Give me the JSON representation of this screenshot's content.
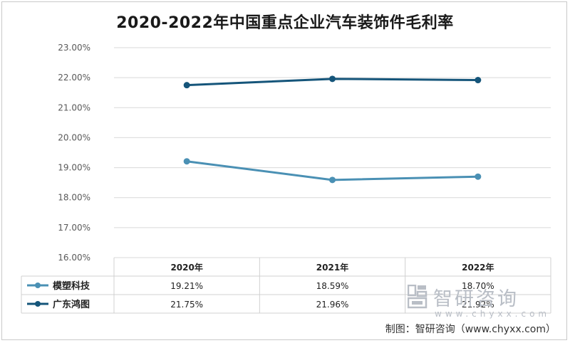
{
  "chart_data": {
    "type": "line",
    "title": "2020-2022年中国重点企业汽车装饰件毛利率",
    "categories": [
      "2020年",
      "2021年",
      "2022年"
    ],
    "series": [
      {
        "name": "模塑科技",
        "values": [
          19.21,
          18.59,
          18.7
        ],
        "value_labels": [
          "19.21%",
          "18.59%",
          "18.70%"
        ],
        "color": "#4a90b4"
      },
      {
        "name": "广东鸿图",
        "values": [
          21.75,
          21.96,
          21.92
        ],
        "value_labels": [
          "21.75%",
          "21.96%",
          "21.92%"
        ],
        "color": "#15557a"
      }
    ],
    "y_ticks": [
      "16.00%",
      "17.00%",
      "18.00%",
      "19.00%",
      "20.00%",
      "21.00%",
      "22.00%",
      "23.00%"
    ],
    "ylim": [
      16,
      23
    ],
    "grid": true,
    "legend": "data-table"
  },
  "watermark": {
    "name": "智研咨询",
    "url": "www.chyxx.com"
  },
  "source": "制图：智研咨询（www.chyxx.com）"
}
